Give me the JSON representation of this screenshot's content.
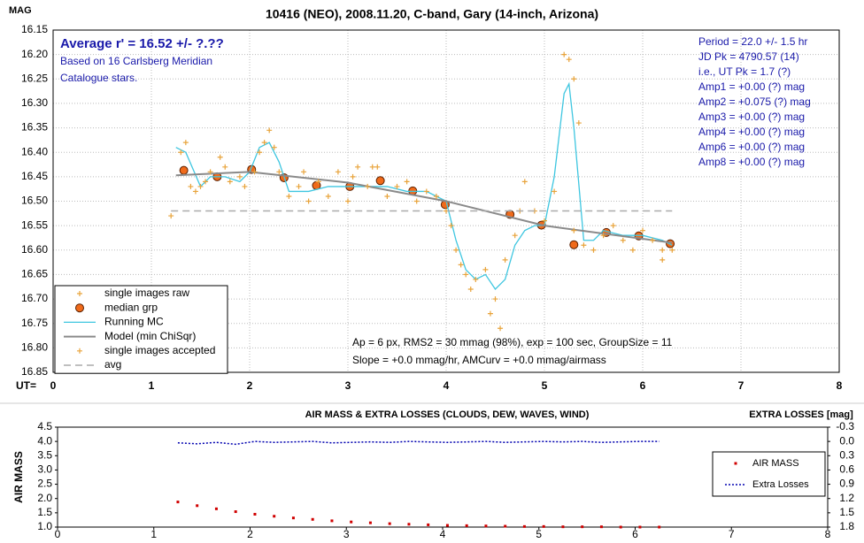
{
  "chart_data": [
    {
      "type": "scatter",
      "title": "10416 (NEO), 2008.11.20, C-band, Gary (14-inch, Arizona)",
      "ylabel": "MAG",
      "xlabel": "UT=",
      "xlim": [
        0,
        8
      ],
      "xticks": [
        0,
        1,
        2,
        3,
        4,
        5,
        6,
        7,
        8
      ],
      "ylim": [
        16.15,
        16.85
      ],
      "y_inverted": true,
      "grid": true,
      "legend": "lower left",
      "yticks": [
        16.15,
        {
          "value": 16.2,
          "label": "16.20"
        },
        16.25,
        {
          "value": 16.3,
          "label": "16.30"
        },
        16.35,
        {
          "value": 16.4,
          "label": "16.40"
        },
        16.45,
        {
          "value": 16.5,
          "label": "16.50"
        },
        16.55,
        {
          "value": 16.6,
          "label": "16.60"
        },
        16.65,
        {
          "value": 16.7,
          "label": "16.70"
        },
        16.75,
        {
          "value": 16.8,
          "label": "16.80"
        },
        16.85
      ],
      "annotations": [
        "Average r' = 16.52 +/- ?.??",
        "Based on 16 Carlsberg Meridian",
        "Catalogue stars.",
        "Period = 22.0 +/- 1.5 hr",
        "JD Pk = 4790.57 (14)",
        "i.e., UT Pk = 1.7 (?)",
        "Amp1 = +0.00 (?) mag",
        "Amp2 = +0.075 (?) mag",
        "Amp3 = +0.00 (?) mag",
        "Amp4 = +0.00 (?) mag",
        "Amp6 = +0.00 (?) mag",
        "Amp8 = +0.00 (?) mag",
        "Ap = 6 px, RMS2 = 30 mmag (98%), exp = 100 sec, GroupSize = 11",
        "Slope = +0.0 mmag/hr, AMCurv = +0.0 mmag/airmass"
      ],
      "series": [
        {
          "name": "single images raw",
          "color": "#e8a33a",
          "marker": "plus",
          "x": [
            1.2,
            4.45,
            4.55,
            5.2,
            5.25,
            5.3,
            5.35,
            6.2
          ],
          "values": [
            16.53,
            16.73,
            16.76,
            16.2,
            16.21,
            16.25,
            16.34,
            16.62
          ]
        },
        {
          "name": "median grp",
          "color": "#f06a1a",
          "marker": "circle",
          "x": [
            1.33,
            1.67,
            2.02,
            2.35,
            2.68,
            3.02,
            3.33,
            3.66,
            3.99,
            4.65,
            4.97,
            5.3,
            5.63,
            5.96,
            6.28
          ],
          "values": [
            16.437,
            16.45,
            16.435,
            16.452,
            16.468,
            16.47,
            16.458,
            16.479,
            16.507,
            16.527,
            16.549,
            16.589,
            16.564,
            16.571,
            16.587
          ]
        },
        {
          "name": "Running MC",
          "color": "#3ec6e0",
          "marker": "line",
          "x": [
            1.25,
            1.35,
            1.5,
            1.6,
            1.75,
            1.9,
            2.0,
            2.1,
            2.2,
            2.3,
            2.4,
            2.6,
            2.8,
            3.0,
            3.2,
            3.4,
            3.6,
            3.8,
            4.0,
            4.1,
            4.2,
            4.3,
            4.4,
            4.5,
            4.6,
            4.7,
            4.8,
            4.9,
            5.0,
            5.1,
            5.2,
            5.25,
            5.3,
            5.4,
            5.5,
            5.6,
            5.8,
            6.0,
            6.2,
            6.3
          ],
          "values": [
            16.39,
            16.4,
            16.47,
            16.45,
            16.45,
            16.46,
            16.44,
            16.39,
            16.38,
            16.42,
            16.48,
            16.48,
            16.47,
            16.47,
            16.47,
            16.47,
            16.48,
            16.48,
            16.5,
            16.58,
            16.64,
            16.66,
            16.65,
            16.68,
            16.66,
            16.59,
            16.56,
            16.55,
            16.55,
            16.45,
            16.28,
            16.26,
            16.35,
            16.58,
            16.58,
            16.56,
            16.57,
            16.57,
            16.58,
            16.59
          ]
        },
        {
          "name": "Model (min ChiSqr)",
          "color": "#8a8a8a",
          "marker": "line",
          "x": [
            1.25,
            2.0,
            3.0,
            4.0,
            5.0,
            6.3
          ],
          "values": [
            16.447,
            16.44,
            16.462,
            16.5,
            16.55,
            16.585
          ]
        },
        {
          "name": "single images accepted",
          "color": "#e8a33a",
          "marker": "plus",
          "x": [
            1.3,
            1.35,
            1.4,
            1.45,
            1.5,
            1.55,
            1.6,
            1.7,
            1.75,
            1.8,
            1.9,
            1.95,
            2.05,
            2.1,
            2.15,
            2.2,
            2.25,
            2.3,
            2.4,
            2.5,
            2.55,
            2.6,
            2.7,
            2.8,
            2.9,
            3.0,
            3.05,
            3.1,
            3.2,
            3.25,
            3.3,
            3.4,
            3.5,
            3.6,
            3.7,
            3.8,
            3.9,
            4.0,
            4.05,
            4.1,
            4.15,
            4.2,
            4.25,
            4.3,
            4.4,
            4.5,
            4.6,
            4.7,
            4.75,
            4.8,
            4.9,
            5.0,
            5.1,
            5.3,
            5.4,
            5.5,
            5.6,
            5.7,
            5.8,
            5.9,
            6.0,
            6.1,
            6.2,
            6.3
          ],
          "values": [
            16.4,
            16.38,
            16.47,
            16.48,
            16.47,
            16.46,
            16.44,
            16.41,
            16.43,
            16.46,
            16.45,
            16.47,
            16.44,
            16.4,
            16.38,
            16.355,
            16.39,
            16.44,
            16.49,
            16.47,
            16.44,
            16.5,
            16.46,
            16.49,
            16.44,
            16.5,
            16.45,
            16.43,
            16.47,
            16.43,
            16.43,
            16.49,
            16.47,
            16.46,
            16.5,
            16.48,
            16.49,
            16.52,
            16.55,
            16.6,
            16.63,
            16.65,
            16.68,
            16.66,
            16.64,
            16.7,
            16.62,
            16.57,
            16.52,
            16.46,
            16.52,
            16.54,
            16.48,
            16.56,
            16.59,
            16.6,
            16.57,
            16.55,
            16.58,
            16.6,
            16.56,
            16.58,
            16.6,
            16.6
          ]
        },
        {
          "name": "avg",
          "color": "#aaaaaa",
          "marker": "dashed",
          "x": [
            1.2,
            6.3
          ],
          "values": [
            16.52,
            16.52
          ]
        }
      ]
    },
    {
      "type": "scatter",
      "title": "AIR MASS & EXTRA LOSSES (CLOUDS, DEW, WAVES, WIND)",
      "ylabel": "AIR MASS",
      "y2label": "EXTRA LOSSES [mag]",
      "xlim": [
        0,
        8
      ],
      "xticks": [
        0,
        1,
        2,
        3,
        4,
        5,
        6,
        7,
        8
      ],
      "ylim": [
        1.0,
        4.5
      ],
      "legend": "upper right",
      "yticks": [
        {
          "value": 1.0,
          "label": "1.0"
        },
        1.5,
        {
          "value": 2.0,
          "label": "2.0"
        },
        2.5,
        {
          "value": 3.0,
          "label": "3.0"
        },
        3.5,
        {
          "value": 4.0,
          "label": "4.0"
        },
        4.5
      ],
      "y2lim": [
        -0.3,
        1.8
      ],
      "y2_inverted": true,
      "y2ticks": [
        -0.3,
        {
          "value": 0.0,
          "label": "0.0"
        },
        0.3,
        0.6,
        0.9,
        1.2,
        1.5,
        1.8
      ],
      "series": [
        {
          "name": "AIR MASS",
          "color": "#d00000",
          "marker": "dot",
          "x": [
            1.25,
            1.45,
            1.65,
            1.85,
            2.05,
            2.25,
            2.45,
            2.65,
            2.85,
            3.05,
            3.25,
            3.45,
            3.65,
            3.85,
            4.05,
            4.25,
            4.45,
            4.65,
            4.85,
            5.05,
            5.25,
            5.45,
            5.65,
            5.85,
            6.05,
            6.25
          ],
          "values": [
            1.88,
            1.75,
            1.64,
            1.54,
            1.45,
            1.38,
            1.32,
            1.27,
            1.22,
            1.18,
            1.15,
            1.12,
            1.1,
            1.08,
            1.06,
            1.05,
            1.04,
            1.03,
            1.02,
            1.02,
            1.01,
            1.01,
            1.01,
            1.0,
            1.0,
            1.0
          ]
        },
        {
          "name": "Extra Losses",
          "color": "#0000b0",
          "marker": "dotted",
          "axis": "y2",
          "x": [
            1.25,
            1.45,
            1.65,
            1.85,
            2.05,
            2.25,
            2.45,
            2.65,
            2.85,
            3.05,
            3.25,
            3.45,
            3.65,
            3.85,
            4.05,
            4.25,
            4.45,
            4.65,
            4.85,
            5.05,
            5.25,
            5.45,
            5.65,
            5.85,
            6.05,
            6.25
          ],
          "values": [
            0.03,
            0.05,
            0.02,
            0.06,
            0.0,
            0.02,
            0.01,
            0.0,
            0.03,
            0.02,
            0.01,
            0.02,
            0.0,
            0.01,
            0.02,
            0.01,
            0.0,
            0.02,
            0.01,
            0.0,
            0.01,
            0.0,
            0.02,
            0.01,
            0.0,
            0.0
          ]
        }
      ]
    }
  ]
}
